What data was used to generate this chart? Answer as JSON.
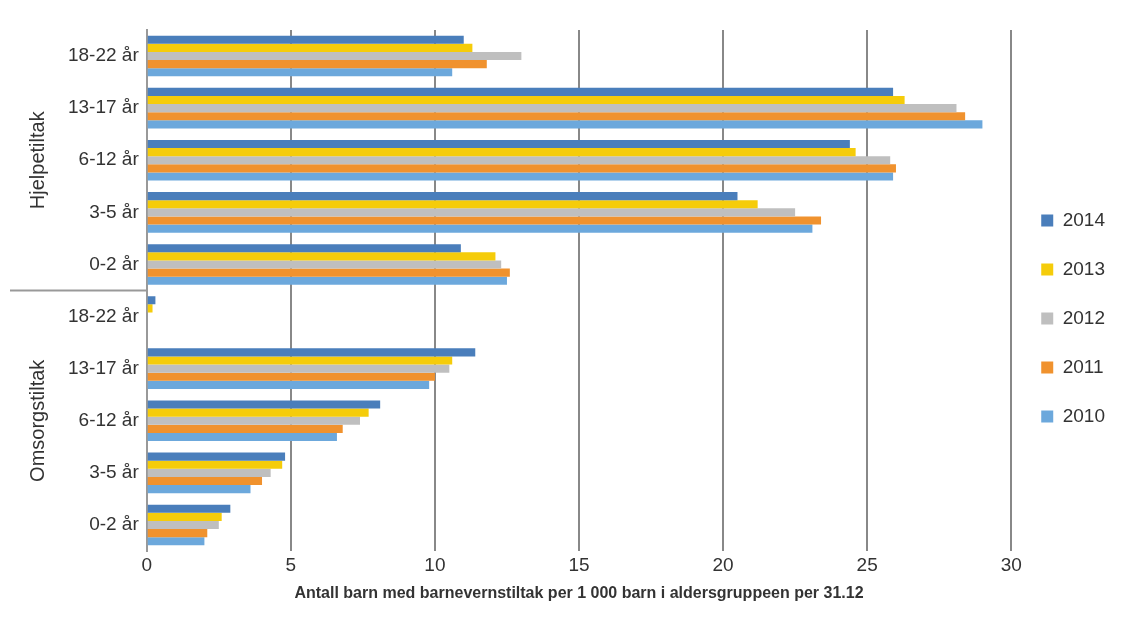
{
  "chart_data": {
    "type": "bar",
    "orientation": "horizontal",
    "xlabel": "Antall barn med barnevernstiltak per 1 000 barn i aldersgruppeen per 31.12",
    "categories": [
      "18-22 år",
      "13-17 år",
      "6-12 år",
      "3-5 år",
      "0-2 år",
      "18-22 år",
      "13-17 år",
      "6-12 år",
      "3-5 år",
      "0-2 år"
    ],
    "annotations": [
      "Hjelpetiltak",
      "Omsorgstiltak"
    ],
    "series": [
      {
        "name": "2014",
        "color": "#4a7ebb",
        "values": [
          11.0,
          25.9,
          24.4,
          20.5,
          10.9,
          0.3,
          11.4,
          8.1,
          4.8,
          2.9
        ]
      },
      {
        "name": "2013",
        "color": "#f5cc0a",
        "values": [
          11.3,
          26.3,
          24.6,
          21.2,
          12.1,
          0.2,
          10.6,
          7.7,
          4.7,
          2.6
        ]
      },
      {
        "name": "2012",
        "color": "#bfbfbf",
        "values": [
          13.0,
          28.1,
          25.8,
          22.5,
          12.3,
          0,
          10.5,
          7.4,
          4.3,
          2.5
        ]
      },
      {
        "name": "2011",
        "color": "#f0922e",
        "values": [
          11.8,
          28.4,
          26.0,
          23.4,
          12.6,
          0,
          10.0,
          6.8,
          4.0,
          2.1
        ]
      },
      {
        "name": "2010",
        "color": "#6ca8dc",
        "values": [
          10.6,
          29.0,
          25.9,
          23.1,
          12.5,
          0,
          9.8,
          6.6,
          3.6,
          2.0
        ]
      }
    ],
    "xlim": [
      0,
      30
    ],
    "xticks": [
      0,
      5,
      10,
      15,
      20,
      25,
      30
    ],
    "grid": "x",
    "legend": "right"
  }
}
